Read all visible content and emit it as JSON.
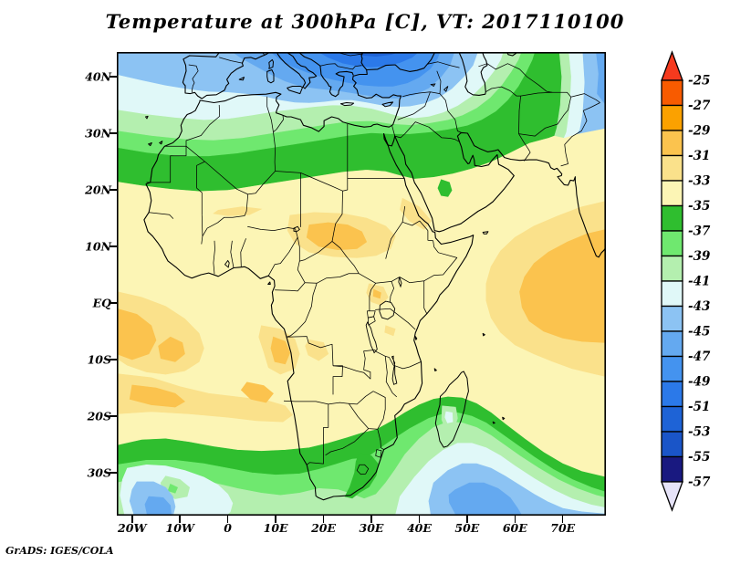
{
  "title": "Temperature at 300hPa [C], VT: 2017110100",
  "credit": "GrADS: IGES/COLA",
  "chart_data": {
    "type": "filled_contour_map",
    "title": "Temperature at 300hPa [C], VT: 2017110100",
    "variable": "Temperature",
    "pressure_level": "300hPa",
    "units": "C",
    "valid_time": "2017110100",
    "region": {
      "lon_min": -23.2,
      "lon_max": 79.0,
      "lat_min": -37.6,
      "lat_max": 44.35
    },
    "grid": false,
    "contour_interval": 2,
    "levels_top_to_bottom": [
      -25,
      -27,
      -29,
      -31,
      -33,
      -35,
      -37,
      -39,
      -41,
      -43,
      -45,
      -47,
      -49,
      -51,
      -53,
      -55,
      -57
    ],
    "axes": {
      "lat_ticks": [
        {
          "label": "40N",
          "value": 40
        },
        {
          "label": "30N",
          "value": 30
        },
        {
          "label": "20N",
          "value": 20
        },
        {
          "label": "10N",
          "value": 10
        },
        {
          "label": "EQ",
          "value": 0
        },
        {
          "label": "10S",
          "value": -10
        },
        {
          "label": "20S",
          "value": -20
        },
        {
          "label": "30S",
          "value": -30
        }
      ],
      "lon_ticks": [
        {
          "label": "20W",
          "value": -20
        },
        {
          "label": "10W",
          "value": -10
        },
        {
          "label": "0",
          "value": 0
        },
        {
          "label": "10E",
          "value": 10
        },
        {
          "label": "20E",
          "value": 20
        },
        {
          "label": "30E",
          "value": 30
        },
        {
          "label": "40E",
          "value": 40
        },
        {
          "label": "50E",
          "value": 50
        },
        {
          "label": "60E",
          "value": 60
        },
        {
          "label": "70E",
          "value": 70
        }
      ]
    },
    "colorbar": {
      "orientation": "vertical",
      "position": "right",
      "labels": [
        "-25",
        "-27",
        "-29",
        "-31",
        "-33",
        "-35",
        "-37",
        "-39",
        "-41",
        "-43",
        "-45",
        "-47",
        "-49",
        "-51",
        "-53",
        "-55",
        "-57"
      ],
      "box_colors_top_to_bottom": [
        "#F85B00",
        "#FBA100",
        "#FBC34E",
        "#FAE18B",
        "#FCF5B5",
        "#2FBE2F",
        "#6FE86F",
        "#B4EFAF",
        "#E0F8F8",
        "#8CC3F3",
        "#64A9F0",
        "#4493EF",
        "#2B79E9",
        "#1E63D6",
        "#1A55C8",
        "#191980"
      ],
      "above_color": "#F53A1E",
      "below_color": "#E6E3F8"
    },
    "field_summary": [
      "Warmest air (-25 to -31 C, orange/amber) over Sahel-Sudan, the tropical Atlantic, Angola coast and the western Indian Ocean",
      "Pale yellow (-33 to -35 C) covers most of tropical Africa and Arabia between about 20N and 20S",
      "Green belt (-35 to -41 C) across North Africa near 20-30N and across the subtropical southern ocean near 20-30S, dipping over South Africa and Madagascar",
      "Cold blues (-43 to -53 C) over the Mediterranean, Europe and the Black Sea region at the top of the map and along the far northeast edge",
      "Cold cyclonic vortex with cyan/blue core southwest of South Africa near 30S 12W and a second blue pool southeast of Madagascar"
    ]
  }
}
